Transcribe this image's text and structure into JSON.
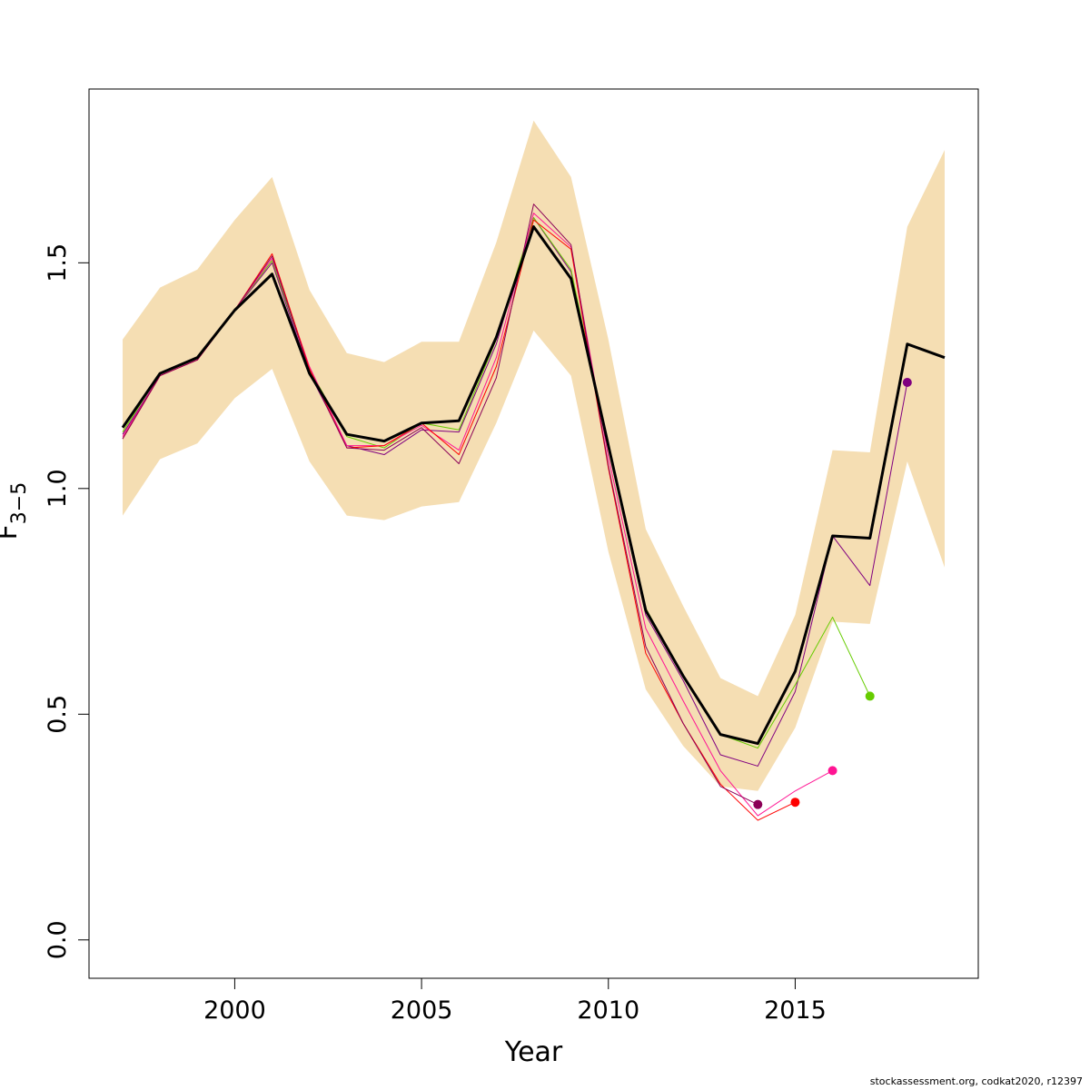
{
  "chart_data": {
    "type": "line",
    "title": "",
    "xlabel": "Year",
    "ylabel": {
      "base": "F",
      "subscript": "3−5"
    },
    "xlim": [
      1996.1,
      2019.9
    ],
    "ylim": [
      -0.085,
      1.885
    ],
    "x_ticks": [
      2000,
      2005,
      2010,
      2015
    ],
    "y_ticks": [
      0.0,
      0.5,
      1.0,
      1.5
    ],
    "y_tick_labels": [
      "0.0",
      "0.5",
      "1.0",
      "1.5"
    ],
    "grid": false,
    "legend": "none",
    "band": {
      "color": "#F5DEB3",
      "x": [
        1997,
        1998,
        1999,
        2000,
        2001,
        2002,
        2003,
        2004,
        2005,
        2006,
        2007,
        2008,
        2009,
        2010,
        2011,
        2012,
        2013,
        2014,
        2015,
        2016,
        2017,
        2018,
        2019
      ],
      "lower": [
        0.94,
        1.065,
        1.1,
        1.2,
        1.265,
        1.06,
        0.94,
        0.93,
        0.96,
        0.97,
        1.145,
        1.35,
        1.25,
        0.86,
        0.555,
        0.43,
        0.34,
        0.33,
        0.47,
        0.705,
        0.7,
        1.06,
        0.825
      ],
      "upper": [
        1.33,
        1.445,
        1.485,
        1.595,
        1.69,
        1.44,
        1.3,
        1.28,
        1.325,
        1.325,
        1.545,
        1.815,
        1.69,
        1.33,
        0.91,
        0.74,
        0.58,
        0.54,
        0.72,
        1.085,
        1.08,
        1.58,
        1.75
      ]
    },
    "series": [
      {
        "color": "#000000",
        "width": 3,
        "x": [
          1997,
          1998,
          1999,
          2000,
          2001,
          2002,
          2003,
          2004,
          2005,
          2006,
          2007,
          2008,
          2009,
          2010,
          2011,
          2012,
          2013,
          2014,
          2015,
          2016,
          2017,
          2018,
          2019
        ],
        "values": [
          1.135,
          1.255,
          1.29,
          1.395,
          1.475,
          1.255,
          1.12,
          1.105,
          1.145,
          1.15,
          1.335,
          1.58,
          1.465,
          1.095,
          0.73,
          0.585,
          0.455,
          0.435,
          0.595,
          0.895,
          0.89,
          1.32,
          1.29
        ]
      },
      {
        "color": "#800080",
        "width": 1,
        "end_point": true,
        "x": [
          1997,
          1998,
          1999,
          2000,
          2001,
          2002,
          2003,
          2004,
          2005,
          2006,
          2007,
          2008,
          2009,
          2010,
          2011,
          2012,
          2013,
          2014,
          2015,
          2016,
          2017,
          2018
        ],
        "values": [
          1.12,
          1.25,
          1.285,
          1.395,
          1.5,
          1.255,
          1.095,
          1.075,
          1.13,
          1.125,
          1.32,
          1.6,
          1.48,
          1.09,
          0.72,
          0.575,
          0.41,
          0.385,
          0.55,
          0.895,
          0.785,
          1.235
        ]
      },
      {
        "color": "#66CC00",
        "width": 1,
        "end_point": true,
        "x": [
          1997,
          1998,
          1999,
          2000,
          2001,
          2002,
          2003,
          2004,
          2005,
          2006,
          2007,
          2008,
          2009,
          2010,
          2011,
          2012,
          2013,
          2014,
          2015,
          2016,
          2017
        ],
        "values": [
          1.125,
          1.255,
          1.29,
          1.395,
          1.505,
          1.265,
          1.115,
          1.09,
          1.145,
          1.13,
          1.33,
          1.6,
          1.485,
          1.09,
          0.735,
          0.585,
          0.455,
          0.425,
          0.565,
          0.715,
          0.54
        ]
      },
      {
        "color": "#FF1493",
        "width": 1,
        "end_point": true,
        "x": [
          1997,
          1998,
          1999,
          2000,
          2001,
          2002,
          2003,
          2004,
          2005,
          2006,
          2007,
          2008,
          2009,
          2010,
          2011,
          2012,
          2013,
          2014,
          2015,
          2016
        ],
        "values": [
          1.115,
          1.25,
          1.285,
          1.395,
          1.51,
          1.27,
          1.095,
          1.095,
          1.14,
          1.085,
          1.29,
          1.61,
          1.535,
          1.07,
          0.69,
          0.53,
          0.375,
          0.275,
          0.33,
          0.375
        ]
      },
      {
        "color": "#FF0000",
        "width": 1,
        "end_point": true,
        "x": [
          1997,
          1998,
          1999,
          2000,
          2001,
          2002,
          2003,
          2004,
          2005,
          2006,
          2007,
          2008,
          2009,
          2010,
          2011,
          2012,
          2013,
          2014,
          2015
        ],
        "values": [
          1.11,
          1.25,
          1.285,
          1.395,
          1.52,
          1.265,
          1.09,
          1.095,
          1.145,
          1.075,
          1.27,
          1.595,
          1.53,
          1.045,
          0.635,
          0.48,
          0.345,
          0.265,
          0.305
        ]
      },
      {
        "color": "#8B0057",
        "width": 1,
        "end_point": true,
        "x": [
          1997,
          1998,
          1999,
          2000,
          2001,
          2002,
          2003,
          2004,
          2005,
          2006,
          2007,
          2008,
          2009,
          2010,
          2011,
          2012,
          2013,
          2014
        ],
        "values": [
          1.11,
          1.25,
          1.285,
          1.395,
          1.515,
          1.26,
          1.09,
          1.085,
          1.135,
          1.055,
          1.245,
          1.63,
          1.54,
          1.05,
          0.65,
          0.48,
          0.34,
          0.3
        ]
      }
    ]
  },
  "footer": {
    "credit": "stockassessment.org, codkat2020, r12397"
  }
}
